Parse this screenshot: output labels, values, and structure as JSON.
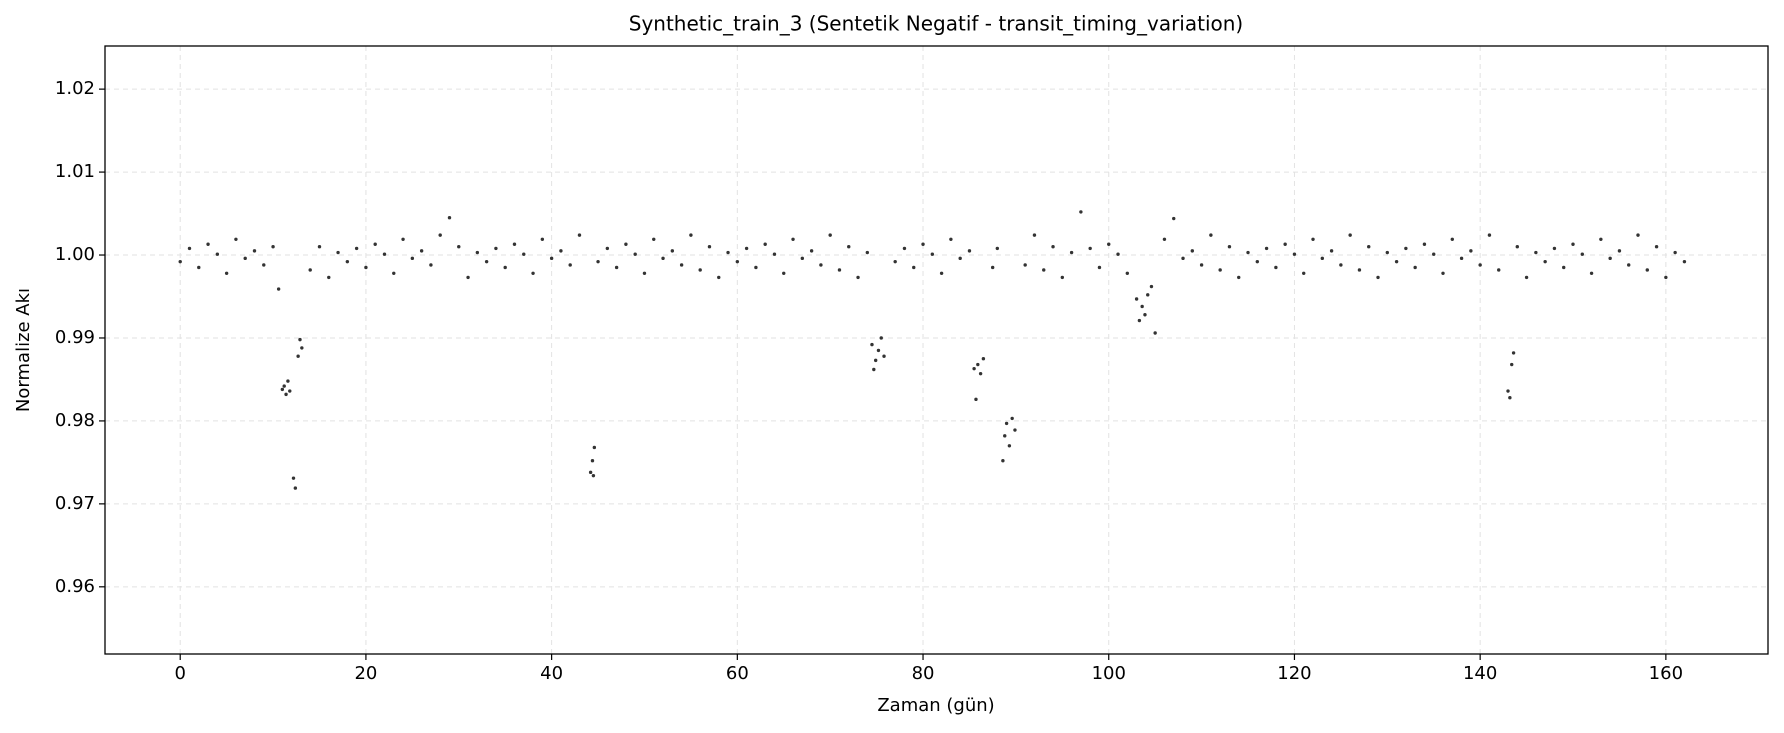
{
  "chart_data": {
    "type": "scatter",
    "title": "Synthetic_train_3 (Sentetik Negatif - transit_timing_variation)",
    "x_label": "Zaman (gün)",
    "y_label": "Normalize Akı",
    "color": "#333333",
    "grid": true,
    "xlim": [
      -8.1,
      171.0
    ],
    "xticks": [
      0,
      20,
      40,
      60,
      80,
      100,
      120,
      140,
      160
    ],
    "ylim": [
      0.9519,
      1.0252
    ],
    "yticks": [
      0.96,
      0.97,
      0.98,
      0.99,
      {
        "value": 1,
        "label": "1.00"
      },
      1.01,
      1.02
    ],
    "x": [
      0,
      1,
      2,
      3,
      4,
      5,
      6,
      7,
      8,
      9,
      10,
      10.6,
      11,
      11.2,
      11.4,
      11.6,
      11.8,
      12.2,
      12.4,
      12.7,
      12.9,
      13.1,
      14,
      15,
      16,
      17,
      18,
      19,
      20,
      21,
      22,
      23,
      24,
      25,
      26,
      27,
      28,
      29,
      30,
      31,
      32,
      33,
      34,
      35,
      36,
      37,
      38,
      39,
      40,
      41,
      42,
      43,
      44.2,
      44.4,
      44.5,
      44.6,
      45,
      46,
      47,
      48,
      49,
      50,
      51,
      52,
      53,
      54,
      55,
      56,
      57,
      58,
      59,
      60,
      61,
      62,
      63,
      64,
      65,
      66,
      67,
      68,
      69,
      70,
      71,
      72,
      73,
      74,
      74.5,
      74.7,
      74.9,
      75.2,
      75.5,
      75.8,
      77,
      78,
      79,
      80,
      81,
      82,
      83,
      84,
      85,
      85.5,
      85.7,
      85.9,
      86.2,
      86.5,
      87.5,
      88,
      88.6,
      88.8,
      89,
      89.3,
      89.6,
      89.9,
      91,
      92,
      93,
      94,
      95,
      96,
      97,
      98,
      99,
      100,
      101,
      102,
      103,
      103.3,
      103.6,
      103.9,
      104.2,
      104.6,
      105,
      106,
      107,
      108,
      109,
      110,
      111,
      112,
      113,
      114,
      115,
      116,
      117,
      118,
      119,
      120,
      121,
      122,
      123,
      124,
      125,
      126,
      127,
      128,
      129,
      130,
      131,
      132,
      133,
      134,
      135,
      136,
      137,
      138,
      139,
      140,
      141,
      142,
      143,
      143.2,
      143.4,
      143.6,
      144,
      145,
      146,
      147,
      148,
      149,
      150,
      151,
      152,
      153,
      154,
      155,
      156,
      157,
      158,
      159,
      160,
      161,
      162
    ],
    "values": [
      0.9992,
      1.0008,
      0.9985,
      1.0013,
      1.0001,
      0.9978,
      1.0019,
      0.9996,
      1.0005,
      0.9988,
      1.001,
      0.9959,
      0.9838,
      0.9842,
      0.9832,
      0.9848,
      0.9836,
      0.9731,
      0.9719,
      0.9878,
      0.9898,
      0.9888,
      0.9982,
      1.001,
      0.9973,
      1.0003,
      0.9992,
      1.0008,
      0.9985,
      1.0013,
      1.0001,
      0.9978,
      1.0019,
      0.9996,
      1.0005,
      0.9988,
      1.0024,
      1.0045,
      1.001,
      0.9973,
      1.0003,
      0.9992,
      1.0008,
      0.9985,
      1.0013,
      1.0001,
      0.9978,
      1.0019,
      0.9996,
      1.0005,
      0.9988,
      1.0024,
      0.9738,
      0.9752,
      0.9734,
      0.9768,
      0.9992,
      1.0008,
      0.9985,
      1.0013,
      1.0001,
      0.9978,
      1.0019,
      0.9996,
      1.0005,
      0.9988,
      1.0024,
      0.9982,
      1.001,
      0.9973,
      1.0003,
      0.9992,
      1.0008,
      0.9985,
      1.0013,
      1.0001,
      0.9978,
      1.0019,
      0.9996,
      1.0005,
      0.9988,
      1.0024,
      0.9982,
      1.001,
      0.9973,
      1.0003,
      0.9892,
      0.9862,
      0.9873,
      0.9885,
      0.99,
      0.9878,
      0.9992,
      1.0008,
      0.9985,
      1.0013,
      1.0001,
      0.9978,
      1.0019,
      0.9996,
      1.0005,
      0.9863,
      0.9826,
      0.9868,
      0.9857,
      0.9875,
      0.9985,
      1.0008,
      0.9752,
      0.9782,
      0.9797,
      0.977,
      0.9803,
      0.9789,
      0.9988,
      1.0024,
      0.9982,
      1.001,
      0.9973,
      1.0003,
      1.0052,
      1.0008,
      0.9985,
      1.0013,
      1.0001,
      0.9978,
      0.9947,
      0.9921,
      0.9938,
      0.9928,
      0.9952,
      0.9962,
      0.9906,
      1.0019,
      1.0044,
      0.9996,
      1.0005,
      0.9988,
      1.0024,
      0.9982,
      1.001,
      0.9973,
      1.0003,
      0.9992,
      1.0008,
      0.9985,
      1.0013,
      1.0001,
      0.9978,
      1.0019,
      0.9996,
      1.0005,
      0.9988,
      1.0024,
      0.9982,
      1.001,
      0.9973,
      1.0003,
      0.9992,
      1.0008,
      0.9985,
      1.0013,
      1.0001,
      0.9978,
      1.0019,
      0.9996,
      1.0005,
      0.9988,
      1.0024,
      0.9982,
      0.9836,
      0.9828,
      0.9868,
      0.9882,
      1.001,
      0.9973,
      1.0003,
      0.9992,
      1.0008,
      0.9985,
      1.0013,
      1.0001,
      0.9978,
      1.0019,
      0.9996,
      1.0005,
      0.9988,
      1.0024,
      0.9982,
      1.001,
      0.9973,
      1.0003,
      0.9992
    ]
  }
}
